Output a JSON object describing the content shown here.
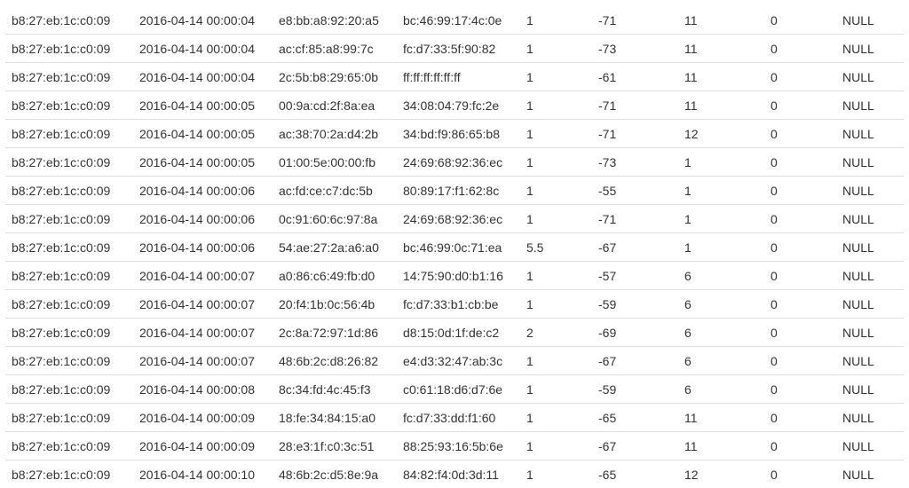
{
  "table": {
    "rows": [
      [
        "b8:27:eb:1c:c0:09",
        "2016-04-14 00:00:04",
        "e8:bb:a8:92:20:a5",
        "bc:46:99:17:4c:0e",
        "1",
        "-71",
        "11",
        "0",
        "NULL"
      ],
      [
        "b8:27:eb:1c:c0:09",
        "2016-04-14 00:00:04",
        "ac:cf:85:a8:99:7c",
        "fc:d7:33:5f:90:82",
        "1",
        "-73",
        "11",
        "0",
        "NULL"
      ],
      [
        "b8:27:eb:1c:c0:09",
        "2016-04-14 00:00:04",
        "2c:5b:b8:29:65:0b",
        "ff:ff:ff:ff:ff:ff",
        "1",
        "-61",
        "11",
        "0",
        "NULL"
      ],
      [
        "b8:27:eb:1c:c0:09",
        "2016-04-14 00:00:05",
        "00:9a:cd:2f:8a:ea",
        "34:08:04:79:fc:2e",
        "1",
        "-71",
        "11",
        "0",
        "NULL"
      ],
      [
        "b8:27:eb:1c:c0:09",
        "2016-04-14 00:00:05",
        "ac:38:70:2a:d4:2b",
        "34:bd:f9:86:65:b8",
        "1",
        "-71",
        "12",
        "0",
        "NULL"
      ],
      [
        "b8:27:eb:1c:c0:09",
        "2016-04-14 00:00:05",
        "01:00:5e:00:00:fb",
        "24:69:68:92:36:ec",
        "1",
        "-73",
        "1",
        "0",
        "NULL"
      ],
      [
        "b8:27:eb:1c:c0:09",
        "2016-04-14 00:00:06",
        "ac:fd:ce:c7:dc:5b",
        "80:89:17:f1:62:8c",
        "1",
        "-55",
        "1",
        "0",
        "NULL"
      ],
      [
        "b8:27:eb:1c:c0:09",
        "2016-04-14 00:00:06",
        "0c:91:60:6c:97:8a",
        "24:69:68:92:36:ec",
        "1",
        "-71",
        "1",
        "0",
        "NULL"
      ],
      [
        "b8:27:eb:1c:c0:09",
        "2016-04-14 00:00:06",
        "54:ae:27:2a:a6:a0",
        "bc:46:99:0c:71:ea",
        "5.5",
        "-67",
        "1",
        "0",
        "NULL"
      ],
      [
        "b8:27:eb:1c:c0:09",
        "2016-04-14 00:00:07",
        "a0:86:c6:49:fb:d0",
        "14:75:90:d0:b1:16",
        "1",
        "-57",
        "6",
        "0",
        "NULL"
      ],
      [
        "b8:27:eb:1c:c0:09",
        "2016-04-14 00:00:07",
        "20:f4:1b:0c:56:4b",
        "fc:d7:33:b1:cb:be",
        "1",
        "-59",
        "6",
        "0",
        "NULL"
      ],
      [
        "b8:27:eb:1c:c0:09",
        "2016-04-14 00:00:07",
        "2c:8a:72:97:1d:86",
        "d8:15:0d:1f:de:c2",
        "2",
        "-69",
        "6",
        "0",
        "NULL"
      ],
      [
        "b8:27:eb:1c:c0:09",
        "2016-04-14 00:00:07",
        "48:6b:2c:d8:26:82",
        "e4:d3:32:47:ab:3c",
        "1",
        "-67",
        "6",
        "0",
        "NULL"
      ],
      [
        "b8:27:eb:1c:c0:09",
        "2016-04-14 00:00:08",
        "8c:34:fd:4c:45:f3",
        "c0:61:18:d6:d7:6e",
        "1",
        "-59",
        "6",
        "0",
        "NULL"
      ],
      [
        "b8:27:eb:1c:c0:09",
        "2016-04-14 00:00:09",
        "18:fe:34:84:15:a0",
        "fc:d7:33:dd:f1:60",
        "1",
        "-65",
        "11",
        "0",
        "NULL"
      ],
      [
        "b8:27:eb:1c:c0:09",
        "2016-04-14 00:00:09",
        "28:e3:1f:c0:3c:51",
        "88:25:93:16:5b:6e",
        "1",
        "-67",
        "11",
        "0",
        "NULL"
      ],
      [
        "b8:27:eb:1c:c0:09",
        "2016-04-14 00:00:10",
        "48:6b:2c:d5:8e:9a",
        "84:82:f4:0d:3d:11",
        "1",
        "-65",
        "12",
        "0",
        "NULL"
      ]
    ]
  }
}
